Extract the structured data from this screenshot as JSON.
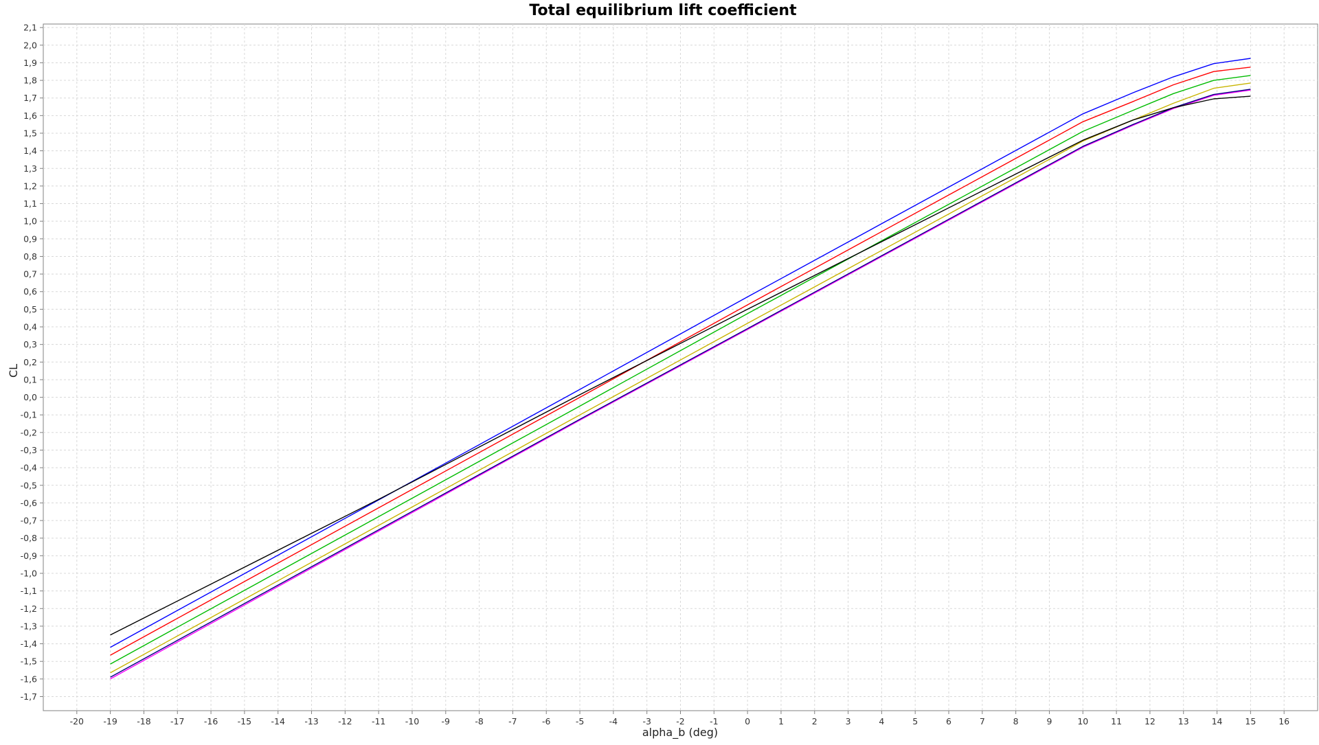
{
  "chart_data": {
    "type": "line",
    "title": "Total equilibrium lift coefficient",
    "xlabel": "alpha_b (deg)",
    "ylabel": "CL",
    "xlim": [
      -21,
      17
    ],
    "ylim": [
      -1.78,
      2.12
    ],
    "grid": true,
    "decimal_separator": ",",
    "x_ticks": [
      -20,
      -19,
      -18,
      -17,
      -16,
      -15,
      -14,
      -13,
      -12,
      -11,
      -10,
      -9,
      -8,
      -7,
      -6,
      -5,
      -4,
      -3,
      -2,
      -1,
      0,
      1,
      2,
      3,
      4,
      5,
      6,
      7,
      8,
      9,
      10,
      11,
      12,
      13,
      14,
      15,
      16
    ],
    "y_ticks": [
      2.1,
      2.0,
      1.9,
      1.8,
      1.7,
      1.6,
      1.5,
      1.4,
      1.3,
      1.2,
      1.1,
      1.0,
      0.9,
      0.8,
      0.7,
      0.6,
      0.5,
      0.4,
      0.3,
      0.2,
      0.1,
      0.0,
      -0.1,
      -0.2,
      -0.3,
      -0.4,
      -0.5,
      -0.6,
      -0.7,
      -0.8,
      -0.9,
      -1.0,
      -1.1,
      -1.2,
      -1.3,
      -1.4,
      -1.5,
      -1.6,
      -1.7
    ],
    "series": [
      {
        "color": "#0000ff",
        "points": [
          [
            -19,
            -1.42
          ],
          [
            -5,
            0.045
          ],
          [
            0,
            0.57
          ],
          [
            10,
            1.61
          ],
          [
            11.5,
            1.73
          ],
          [
            12.7,
            1.82
          ],
          [
            13.9,
            1.895
          ],
          [
            15,
            1.925
          ]
        ]
      },
      {
        "color": "#ff0000",
        "points": [
          [
            -19,
            -1.465
          ],
          [
            -5,
            0.0
          ],
          [
            0,
            0.525
          ],
          [
            10,
            1.565
          ],
          [
            11.5,
            1.68
          ],
          [
            12.7,
            1.775
          ],
          [
            13.9,
            1.85
          ],
          [
            15,
            1.875
          ]
        ]
      },
      {
        "color": "#00bb00",
        "points": [
          [
            -19,
            -1.515
          ],
          [
            -5,
            -0.05
          ],
          [
            0,
            0.475
          ],
          [
            10,
            1.51
          ],
          [
            11.5,
            1.63
          ],
          [
            12.7,
            1.725
          ],
          [
            13.9,
            1.8
          ],
          [
            15,
            1.828
          ]
        ]
      },
      {
        "color": "#c8b400",
        "points": [
          [
            -19,
            -1.565
          ],
          [
            -5,
            -0.1
          ],
          [
            0,
            0.42
          ],
          [
            10,
            1.455
          ],
          [
            11.5,
            1.575
          ],
          [
            12.7,
            1.67
          ],
          [
            13.9,
            1.755
          ],
          [
            15,
            1.785
          ]
        ]
      },
      {
        "color": "#ff00ff",
        "points": [
          [
            -19,
            -1.6
          ],
          [
            -5,
            -0.13
          ],
          [
            0,
            0.385
          ],
          [
            10,
            1.42
          ],
          [
            11.5,
            1.545
          ],
          [
            12.7,
            1.64
          ],
          [
            13.9,
            1.715
          ],
          [
            15,
            1.745
          ]
        ]
      },
      {
        "color": "#000080",
        "points": [
          [
            -19,
            -1.59
          ],
          [
            -5,
            -0.125
          ],
          [
            0,
            0.39
          ],
          [
            10,
            1.425
          ],
          [
            11.5,
            1.55
          ],
          [
            12.7,
            1.645
          ],
          [
            13.9,
            1.72
          ],
          [
            15,
            1.75
          ]
        ]
      },
      {
        "color": "#000000",
        "points": [
          [
            -19,
            -1.35
          ],
          [
            -11,
            -0.58
          ],
          [
            -5,
            0.015
          ],
          [
            0,
            0.5
          ],
          [
            10,
            1.46
          ],
          [
            11.5,
            1.575
          ],
          [
            12.7,
            1.645
          ],
          [
            13.9,
            1.695
          ],
          [
            15,
            1.71
          ]
        ]
      }
    ]
  }
}
